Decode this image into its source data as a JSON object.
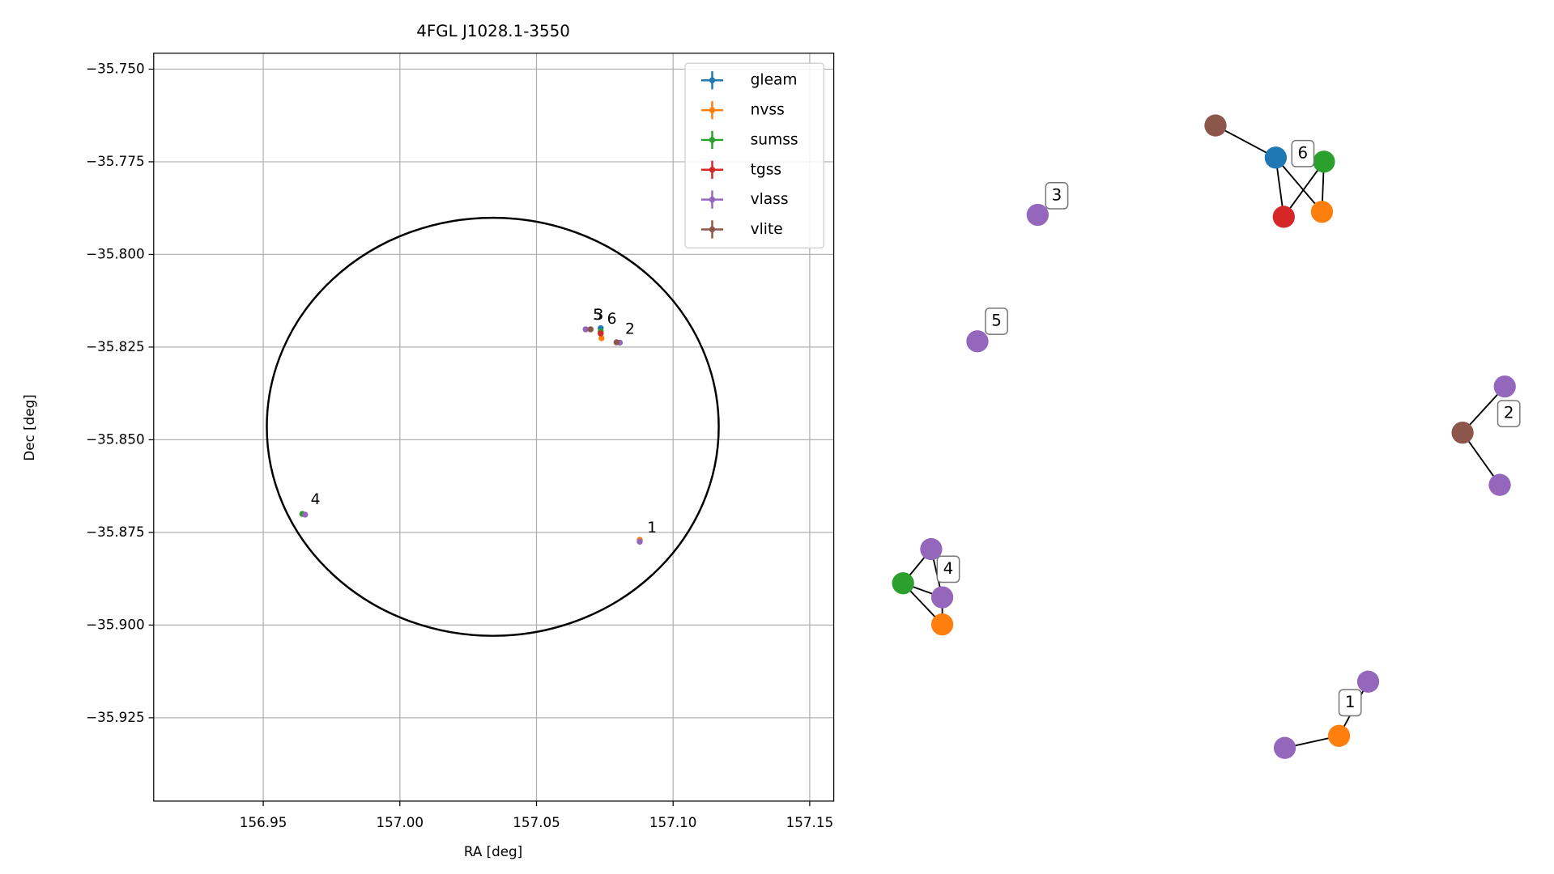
{
  "chart_data": [
    {
      "type": "scatter",
      "title": "4FGL J1028.1-3550",
      "x_label": "RA [deg]",
      "y_label": "Dec [deg]",
      "xlim": [
        156.9099,
        157.1588
      ],
      "ylim": [
        -35.9475,
        -35.7457
      ],
      "xticks": [
        {
          "value": 156.95,
          "label": "156.95"
        },
        {
          "value": 157.0,
          "label": "157.00"
        },
        {
          "value": 157.05,
          "label": "157.05"
        },
        {
          "value": 157.1,
          "label": "157.10"
        },
        {
          "value": 157.15,
          "label": "157.15"
        }
      ],
      "yticks": [
        {
          "value": -35.75,
          "label": "−35.750"
        },
        {
          "value": -35.775,
          "label": "−35.775"
        },
        {
          "value": -35.8,
          "label": "−35.800"
        },
        {
          "value": -35.825,
          "label": "−35.825"
        },
        {
          "value": -35.85,
          "label": "−35.850"
        },
        {
          "value": -35.875,
          "label": "−35.875"
        },
        {
          "value": -35.9,
          "label": "−35.900"
        },
        {
          "value": -35.925,
          "label": "−35.925"
        }
      ],
      "grid": true,
      "legend": "upper right",
      "series": [
        {
          "name": "gleam",
          "color": "#1f77b4",
          "x": [
            157.0735
          ],
          "y": [
            -35.8199
          ]
        },
        {
          "name": "nvss",
          "color": "#ff7f0e",
          "x": [
            157.0738,
            157.0878
          ],
          "y": [
            -35.8226,
            -35.877
          ]
        },
        {
          "name": "sumss",
          "color": "#2ca02c",
          "x": [
            157.0735,
            156.9643
          ],
          "y": [
            -35.8208,
            -35.87
          ]
        },
        {
          "name": "tgss",
          "color": "#d62728",
          "x": [
            157.0735
          ],
          "y": [
            -35.8213
          ]
        },
        {
          "name": "vlass",
          "color": "#9467bd",
          "x": [
            157.068,
            157.0805,
            157.0878,
            156.9653
          ],
          "y": [
            -35.8202,
            -35.8238,
            -35.8775,
            -35.8702
          ]
        },
        {
          "name": "vlite",
          "color": "#8c564b",
          "x": [
            157.0698,
            157.0793
          ],
          "y": [
            -35.8202,
            -35.8237
          ]
        }
      ],
      "circle": {
        "center_x": 157.034,
        "center_y": -35.8465,
        "radius_x": 0.0827,
        "radius_y": 0.0564
      },
      "annotations": [
        {
          "text": "5",
          "x": 157.0724,
          "y": -35.8164
        },
        {
          "text": "3",
          "x": 157.0728,
          "y": -35.8164
        },
        {
          "text": "6",
          "x": 157.0776,
          "y": -35.8175
        },
        {
          "text": "2",
          "x": 157.0842,
          "y": -35.8202
        },
        {
          "text": "4",
          "x": 156.9691,
          "y": -35.8662
        },
        {
          "text": "1",
          "x": 157.0923,
          "y": -35.8738
        }
      ]
    },
    {
      "type": "graph",
      "labels": [
        "6",
        "3",
        "5",
        "2",
        "4",
        "1"
      ]
    }
  ]
}
